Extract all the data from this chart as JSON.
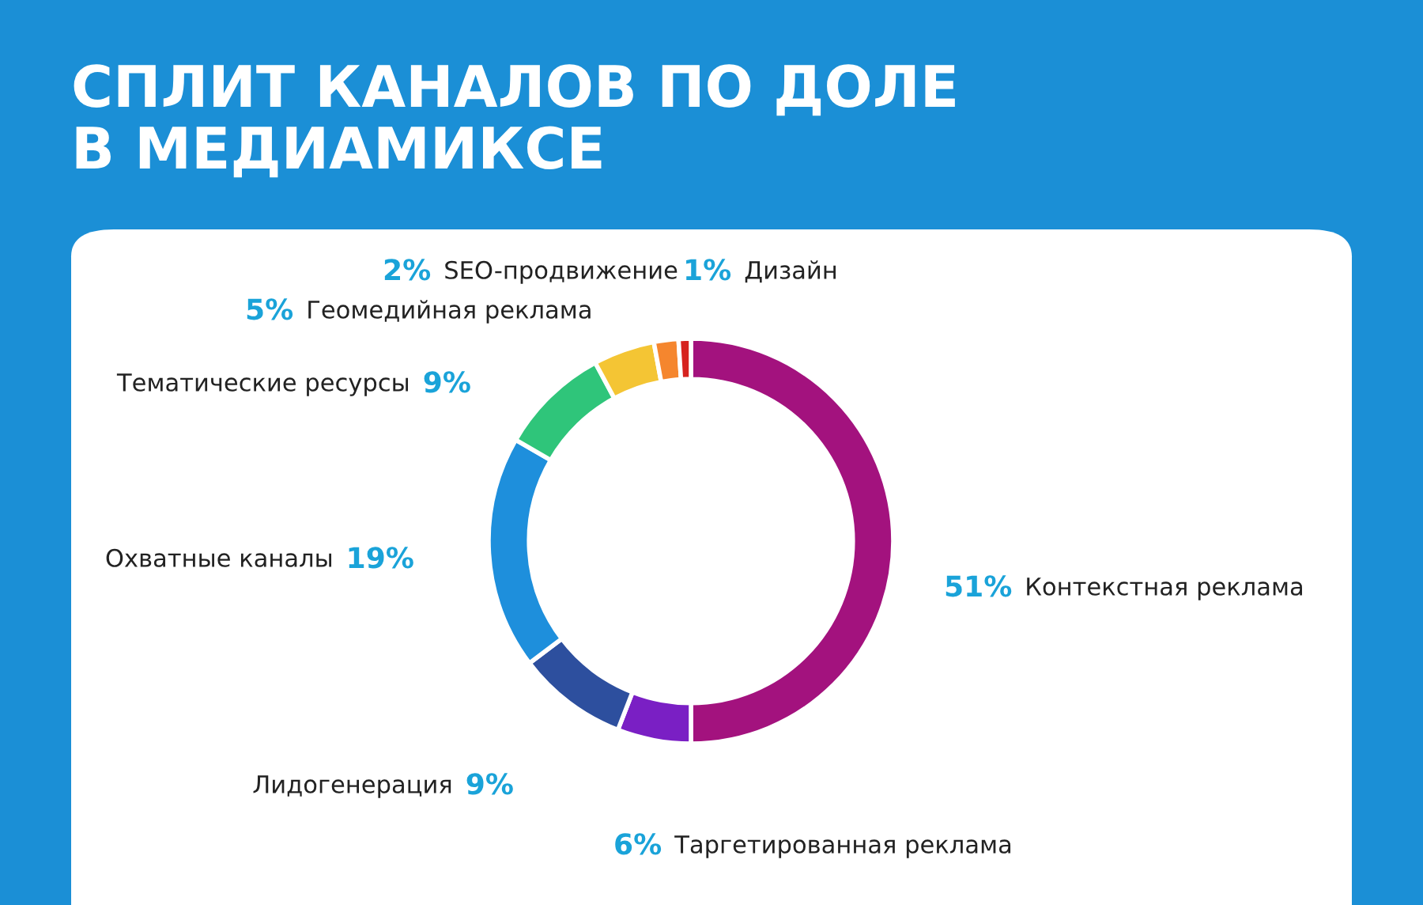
{
  "chart_data": {
    "type": "donut",
    "title": "СПЛИТ КАНАЛОВ ПО ДОЛЕ\nВ МЕДИАМИКСЕ",
    "categories": [
      "Контекстная реклама",
      "Таргетированная реклама",
      "Лидогенерация",
      "Охватные каналы",
      "Тематические ресурсы",
      "Геомедийная реклама",
      "SEO-продвижение",
      "Дизайн"
    ],
    "values": [
      51,
      6,
      9,
      19,
      9,
      5,
      2,
      1
    ],
    "value_labels": [
      "51%",
      "6%",
      "9%",
      "19%",
      "9%",
      "5%",
      "2%",
      "1%"
    ],
    "colors": [
      "#a3127e",
      "#7a1fc4",
      "#2d4f9e",
      "#1e8fdc",
      "#2fc57a",
      "#f4c534",
      "#f5862e",
      "#d6231f"
    ],
    "legend": false
  }
}
